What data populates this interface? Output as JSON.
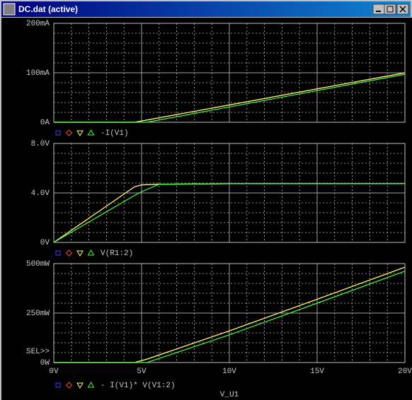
{
  "window": {
    "title": "DC.dat (active)"
  },
  "chart_data": [
    {
      "type": "line",
      "legend_label": "-I(V1)",
      "x": [
        0,
        4.6,
        5,
        5.3,
        10,
        15,
        20
      ],
      "series": [
        {
          "color": "#4040ff",
          "values": [
            0,
            0,
            2.6,
            4.5,
            35,
            67.5,
            100
          ]
        },
        {
          "color": "#ff4040",
          "values": [
            0,
            0,
            2.6,
            4.5,
            35,
            67.5,
            100
          ]
        },
        {
          "color": "#ffff60",
          "values": [
            0,
            0,
            2.6,
            4.5,
            35,
            67.5,
            100
          ]
        },
        {
          "color": "#40ff40",
          "values": [
            0,
            0,
            0,
            0,
            31,
            64,
            97
          ]
        }
      ],
      "xlim": [
        0,
        20
      ],
      "xticks": [
        0,
        5,
        10,
        15,
        20
      ],
      "xminorticks": [
        1,
        2,
        3,
        4,
        6,
        7,
        8,
        9,
        11,
        12,
        13,
        14,
        16,
        17,
        18,
        19
      ],
      "ylim": [
        0,
        200
      ],
      "yticks": [
        {
          "value": 0,
          "label": "0A"
        },
        {
          "value": 100,
          "label": "100mA"
        },
        {
          "value": 200,
          "label": "200mA"
        }
      ],
      "yminorticks": [
        20,
        40,
        60,
        80,
        120,
        140,
        160,
        180
      ],
      "grid": true
    },
    {
      "type": "line",
      "legend_label": "V(R1:2)",
      "x": [
        0,
        4.6,
        5,
        6,
        10,
        15,
        20
      ],
      "series": [
        {
          "color": "#4040ff",
          "values": [
            0,
            4.5,
            4.65,
            4.7,
            4.75,
            4.75,
            4.75
          ]
        },
        {
          "color": "#ff4040",
          "values": [
            0,
            4.5,
            4.65,
            4.7,
            4.75,
            4.75,
            4.75
          ]
        },
        {
          "color": "#ffff60",
          "values": [
            0,
            4.5,
            4.65,
            4.7,
            4.75,
            4.75,
            4.75
          ]
        },
        {
          "color": "#40ff40",
          "values": [
            0,
            3.8,
            4.1,
            4.7,
            4.75,
            4.75,
            4.75
          ]
        }
      ],
      "xlim": [
        0,
        20
      ],
      "xticks": [
        0,
        5,
        10,
        15,
        20
      ],
      "xminorticks": [
        1,
        2,
        3,
        4,
        6,
        7,
        8,
        9,
        11,
        12,
        13,
        14,
        16,
        17,
        18,
        19
      ],
      "ylim": [
        0,
        8
      ],
      "yticks": [
        {
          "value": 0,
          "label": "0V"
        },
        {
          "value": 4,
          "label": "4.0V"
        },
        {
          "value": 8,
          "label": "8.0V"
        }
      ],
      "yminorticks": [
        0.8,
        1.6,
        2.4,
        3.2,
        4.8,
        5.6,
        6.4,
        7.2
      ],
      "grid": true
    },
    {
      "type": "line",
      "legend_label": "- I(V1)* V(V1:2)",
      "xlabel": "V_U1",
      "marker_label": "SEL>>",
      "x": [
        0,
        4.6,
        5,
        5.3,
        10,
        15,
        20
      ],
      "series": [
        {
          "color": "#4040ff",
          "values": [
            0,
            0,
            10,
            17,
            160,
            320,
            482
          ]
        },
        {
          "color": "#ff4040",
          "values": [
            0,
            0,
            10,
            17,
            160,
            320,
            482
          ]
        },
        {
          "color": "#ffff60",
          "values": [
            0,
            0,
            10,
            17,
            160,
            320,
            482
          ]
        },
        {
          "color": "#40ff40",
          "values": [
            0,
            0,
            0,
            0,
            140,
            300,
            462
          ]
        }
      ],
      "xlim": [
        0,
        20
      ],
      "xticks": [
        {
          "value": 0,
          "label": "0V"
        },
        {
          "value": 5,
          "label": "5V"
        },
        {
          "value": 10,
          "label": "10V"
        },
        {
          "value": 15,
          "label": "15V"
        },
        {
          "value": 20,
          "label": "20V"
        }
      ],
      "xminorticks": [
        1,
        2,
        3,
        4,
        6,
        7,
        8,
        9,
        11,
        12,
        13,
        14,
        16,
        17,
        18,
        19
      ],
      "ylim": [
        0,
        500
      ],
      "yticks": [
        {
          "value": 0,
          "label": "0W"
        },
        {
          "value": 250,
          "label": "250mW"
        },
        {
          "value": 500,
          "label": "500mW"
        }
      ],
      "yminorticks": [
        50,
        100,
        150,
        200,
        300,
        350,
        400,
        450
      ],
      "grid": true
    }
  ]
}
